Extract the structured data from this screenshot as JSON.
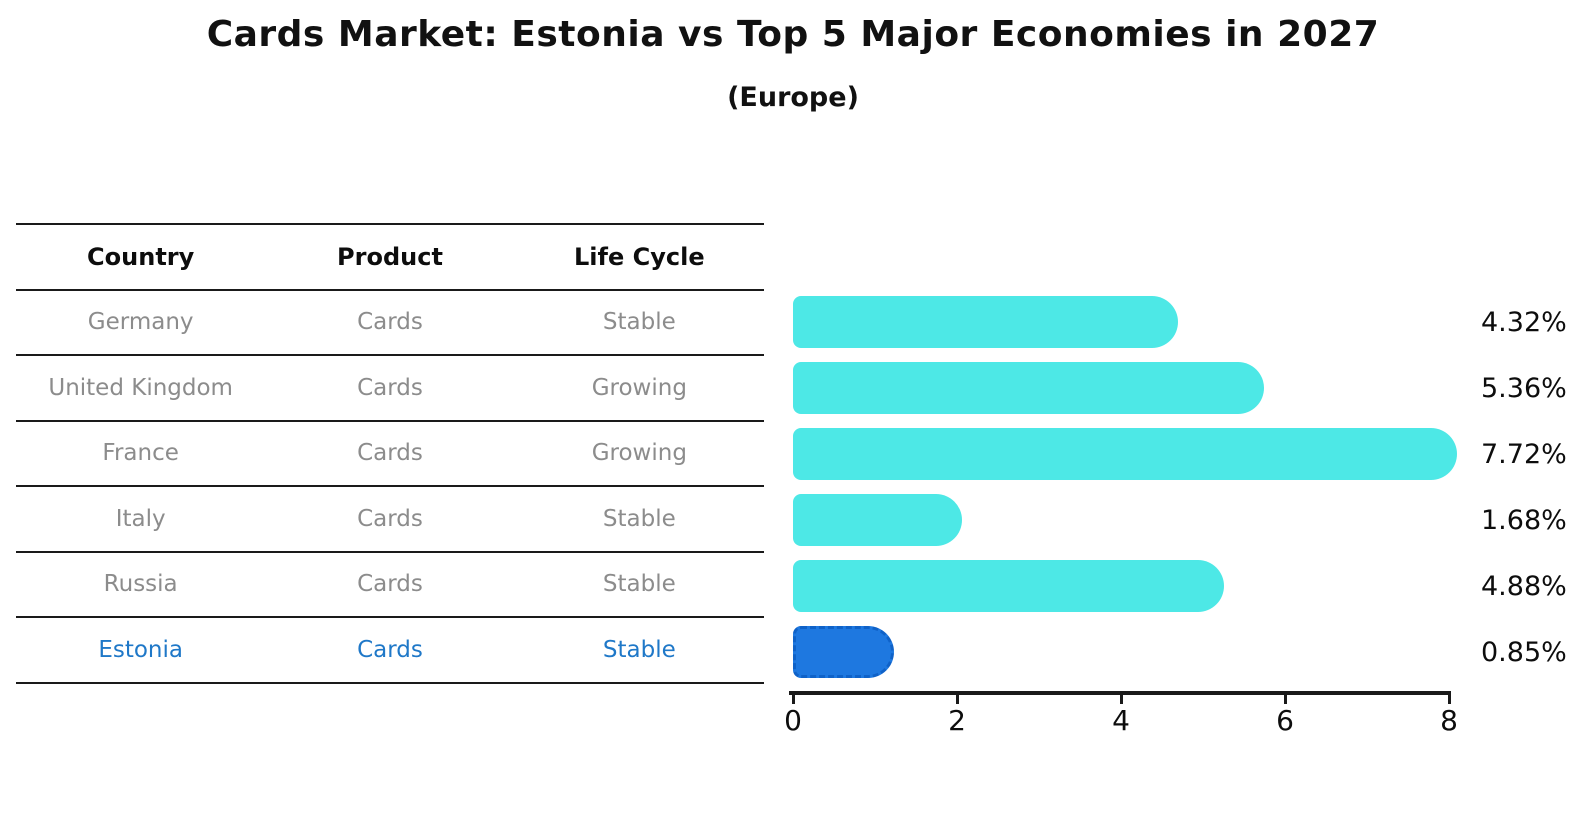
{
  "header": {
    "title": "Cards Market: Estonia vs Top 5 Major Economies in 2027",
    "subtitle": "(Europe)"
  },
  "table": {
    "columns": [
      "Country",
      "Product",
      "Life Cycle"
    ],
    "rows": [
      {
        "country": "Germany",
        "product": "Cards",
        "life_cycle": "Stable",
        "highlight": false
      },
      {
        "country": "United Kingdom",
        "product": "Cards",
        "life_cycle": "Growing",
        "highlight": false
      },
      {
        "country": "France",
        "product": "Cards",
        "life_cycle": "Growing",
        "highlight": false
      },
      {
        "country": "Italy",
        "product": "Cards",
        "life_cycle": "Stable",
        "highlight": false
      },
      {
        "country": "Russia",
        "product": "Cards",
        "life_cycle": "Stable",
        "highlight": false
      },
      {
        "country": "Estonia",
        "product": "Cards",
        "life_cycle": "Stable",
        "highlight": true
      }
    ]
  },
  "chart_data": {
    "type": "bar",
    "orientation": "horizontal",
    "title": "Cards Market: Estonia vs Top 5 Major Economies in 2027",
    "subtitle": "(Europe)",
    "categories": [
      "Germany",
      "United Kingdom",
      "France",
      "Italy",
      "Russia",
      "Estonia"
    ],
    "values": [
      4.32,
      5.36,
      7.72,
      1.68,
      4.88,
      0.85
    ],
    "labels": [
      "4.32%",
      "5.36%",
      "7.72%",
      "1.68%",
      "4.88%",
      "0.85%"
    ],
    "xlim": [
      0,
      8
    ],
    "xticks": [
      "0",
      "2",
      "4",
      "6",
      "8"
    ],
    "grid": false,
    "legend": "none",
    "bar_color": "#4de8e6",
    "highlight_bar_color": "#1e78e0",
    "highlight_border_color": "#0f62c8",
    "highlight_index": 5,
    "highlight_text_color": "#1f78c8"
  }
}
